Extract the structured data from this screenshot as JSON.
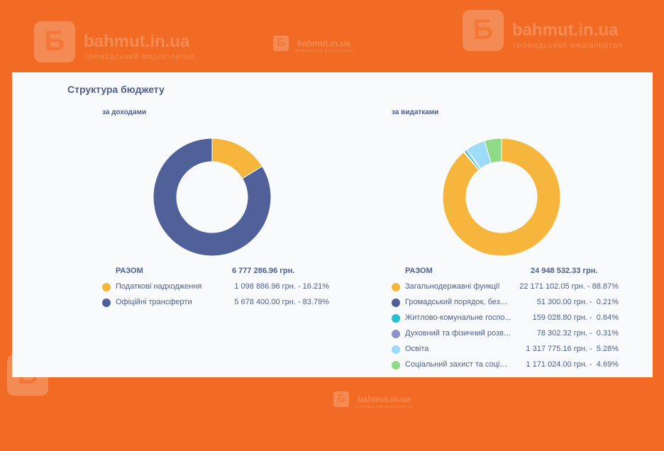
{
  "watermark": {
    "name": "bahmut.in.ua",
    "tagline": "громадський медіапортал"
  },
  "page_title": "Структура бюджету",
  "chart_data": [
    {
      "type": "pie",
      "title": "за доходами",
      "total_label": "РАЗОМ",
      "total_value": "6 777 286.96 грн.",
      "slices": [
        {
          "label": "Податкові надходження",
          "amount": "1 098 886.96 грн.",
          "percent_text": "16.21%",
          "value": 16.21,
          "color": "#F6B63E"
        },
        {
          "label": "Офіційні трансферти",
          "amount": "5 678 400.00 грн.",
          "percent_text": "83.79%",
          "value": 83.79,
          "color": "#4F6198"
        }
      ]
    },
    {
      "type": "pie",
      "title": "за видатками",
      "total_label": "РАЗОМ",
      "total_value": "24 948 532.33 грн.",
      "slices": [
        {
          "label": "Загальнодержавні функції",
          "amount": "22 171 102.05 грн.",
          "percent_text": "88.87%",
          "value": 88.87,
          "color": "#F6B63E"
        },
        {
          "label": "Громадський порядок, безпе...",
          "amount": "51 300.00 грн.",
          "percent_text": "0.21%",
          "value": 0.21,
          "color": "#4F6198"
        },
        {
          "label": "Житлово-комунальне госпо...",
          "amount": "159 028.80 грн.",
          "percent_text": "0.64%",
          "value": 0.64,
          "color": "#25C0CF"
        },
        {
          "label": "Духовний та фізичний розви...",
          "amount": "78 302.32 грн.",
          "percent_text": "0.31%",
          "value": 0.31,
          "color": "#8E90C8"
        },
        {
          "label": "Освіта",
          "amount": "1 317 775.16 грн.",
          "percent_text": "5.28%",
          "value": 5.28,
          "color": "#9DDCF8"
        },
        {
          "label": "Соціальний захист та соціал...",
          "amount": "1 171 024.00 грн.",
          "percent_text": "4.69%",
          "value": 4.69,
          "color": "#8FDA86"
        }
      ]
    }
  ]
}
